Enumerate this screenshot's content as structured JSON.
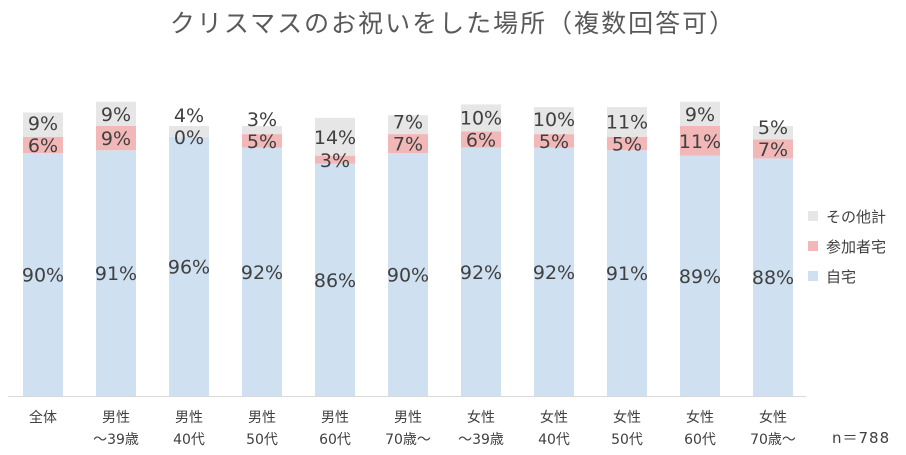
{
  "chart_data": {
    "type": "bar",
    "stacked": true,
    "title": "クリスマスのお祝いをした場所（複数回答可）",
    "categories": [
      [
        "全体"
      ],
      [
        "男性",
        "～39歳"
      ],
      [
        "男性",
        "40代"
      ],
      [
        "男性",
        "50代"
      ],
      [
        "男性",
        "60代"
      ],
      [
        "男性",
        "70歳～"
      ],
      [
        "女性",
        "～39歳"
      ],
      [
        "女性",
        "40代"
      ],
      [
        "女性",
        "50代"
      ],
      [
        "女性",
        "60代"
      ],
      [
        "女性",
        "70歳～"
      ]
    ],
    "series": [
      {
        "name": "自宅",
        "color": "#cfe0f1",
        "values": [
          90,
          91,
          96,
          92,
          86,
          90,
          92,
          92,
          91,
          89,
          88
        ]
      },
      {
        "name": "参加者宅",
        "color": "#f2b8b8",
        "values": [
          6,
          9,
          0,
          5,
          3,
          7,
          6,
          5,
          5,
          11,
          7
        ]
      },
      {
        "name": "その他計",
        "color": "#e6e6e6",
        "values": [
          9,
          9,
          4,
          3,
          14,
          7,
          10,
          10,
          11,
          9,
          5
        ]
      }
    ],
    "value_suffix": "%",
    "ylim": [
      0,
      105
    ],
    "legend_position": "right",
    "grid": false
  },
  "footnote": "n＝788"
}
